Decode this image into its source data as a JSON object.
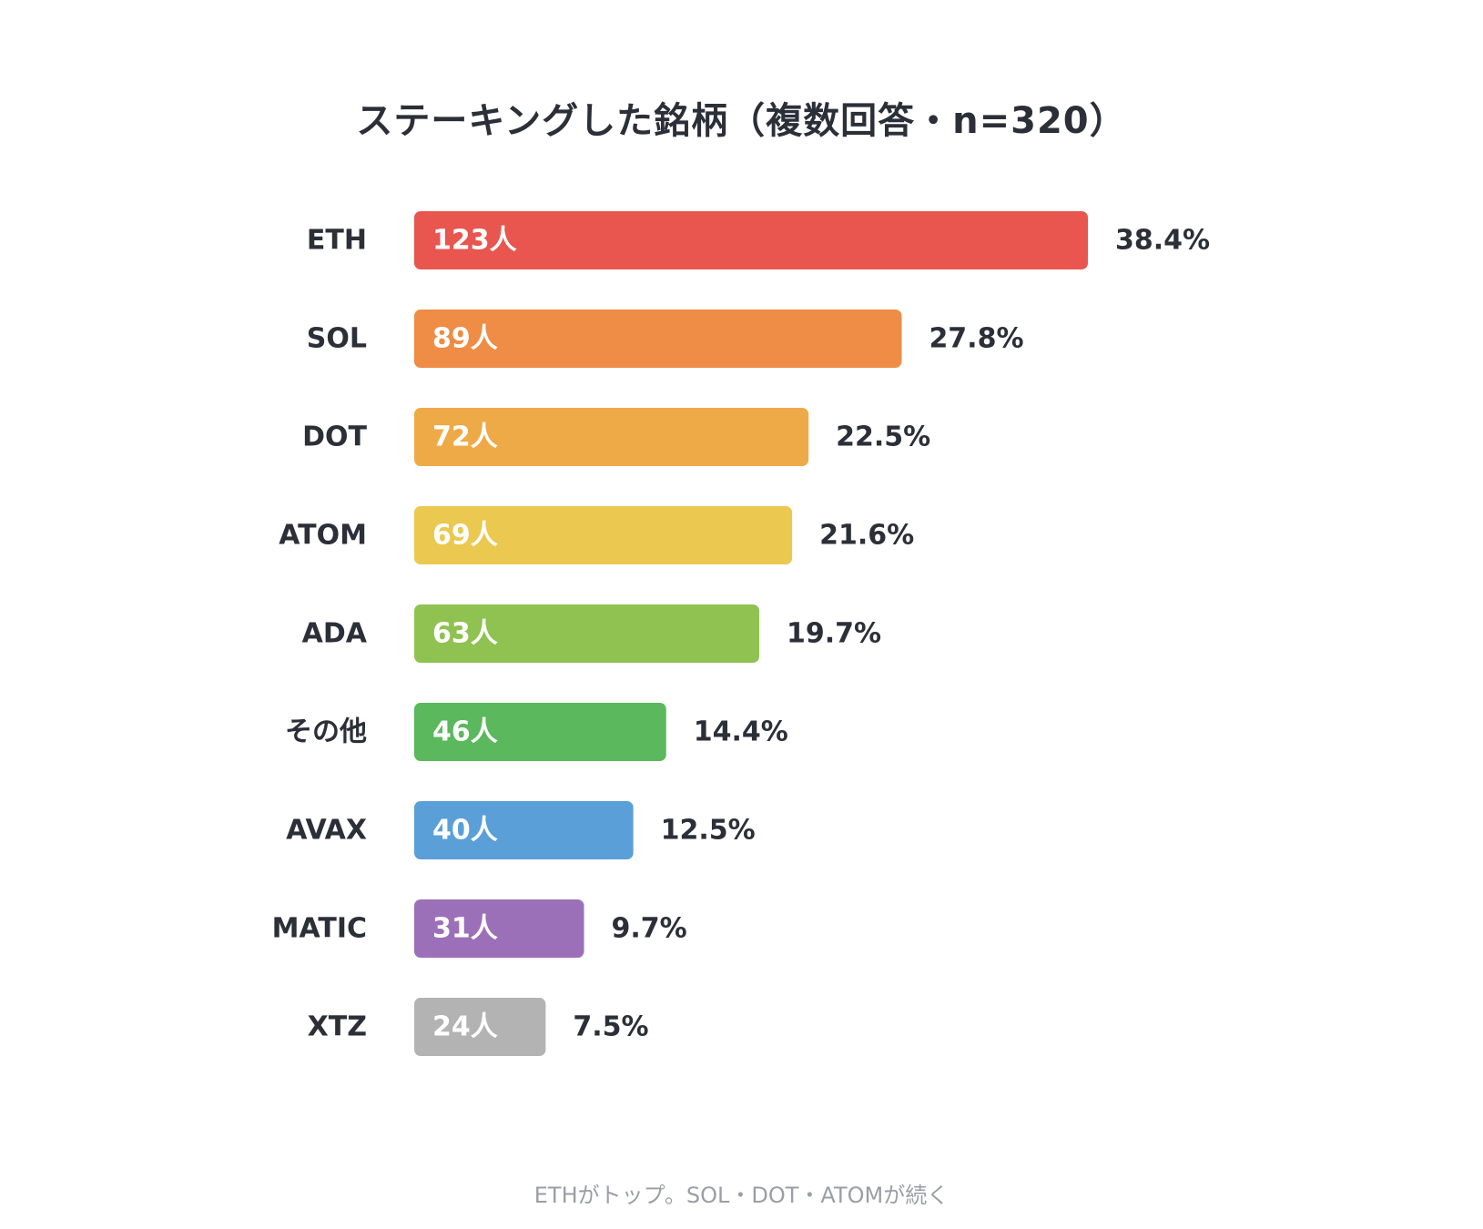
{
  "chart_data": {
    "type": "bar",
    "orientation": "horizontal",
    "title": "ステーキングした銘柄（複数回答・n=320）",
    "caption": "ETHがトップ。SOL・DOT・ATOMが続く",
    "categories": [
      "ETH",
      "SOL",
      "DOT",
      "ATOM",
      "ADA",
      "その他",
      "AVAX",
      "MATIC",
      "XTZ"
    ],
    "series": [
      {
        "values": [
          123,
          89,
          72,
          69,
          63,
          46,
          40,
          31,
          24
        ],
        "value_labels": [
          "123人",
          "89人",
          "72人",
          "69人",
          "63人",
          "46人",
          "40人",
          "31人",
          "24人"
        ],
        "percent_labels": [
          "38.4%",
          "27.8%",
          "22.5%",
          "21.6%",
          "19.7%",
          "14.4%",
          "12.5%",
          "9.7%",
          "7.5%"
        ]
      }
    ],
    "colors": [
      "#e8564f",
      "#ef8c45",
      "#eeaa46",
      "#ebc84f",
      "#8fc250",
      "#5bb85d",
      "#5b9fd8",
      "#9c70b8",
      "#b3b3b3"
    ],
    "grid": false,
    "legend": "none"
  }
}
